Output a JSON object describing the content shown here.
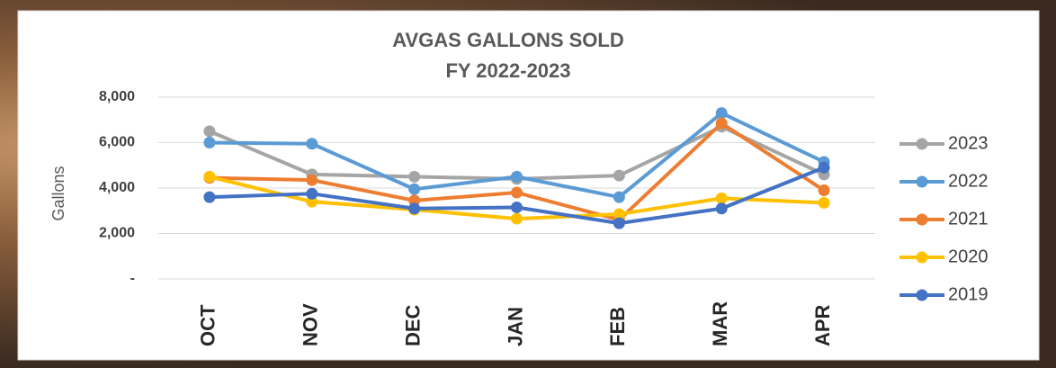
{
  "chart_data": {
    "type": "line",
    "title": "AVGAS GALLONS SOLD",
    "subtitle": "FY 2022-2023",
    "y_label": "Gallons",
    "categories": [
      "OCT",
      "NOV",
      "DEC",
      "JAN",
      "FEB",
      "MAR",
      "APR"
    ],
    "series": [
      {
        "name": "2023",
        "color": "#a5a5a5",
        "values": [
          6500,
          4600,
          4500,
          4400,
          4550,
          6700,
          4600
        ]
      },
      {
        "name": "2022",
        "color": "#5b9bd5",
        "values": [
          6000,
          5950,
          3950,
          4500,
          3600,
          7300,
          5150
        ]
      },
      {
        "name": "2021",
        "color": "#ed7d31",
        "values": [
          4450,
          4350,
          3450,
          3800,
          2600,
          6850,
          3900
        ]
      },
      {
        "name": "2020",
        "color": "#ffc000",
        "values": [
          4500,
          3400,
          3050,
          2650,
          2850,
          3550,
          3350
        ]
      },
      {
        "name": "2019",
        "color": "#4472c4",
        "values": [
          3600,
          3750,
          3100,
          3150,
          2450,
          3100,
          4900
        ]
      }
    ],
    "ylim": [
      0,
      8000
    ],
    "yticks": [
      {
        "value": 0,
        "label": "-"
      },
      {
        "value": 2000,
        "label": "2,000"
      },
      {
        "value": 4000,
        "label": "4,000"
      },
      {
        "value": 6000,
        "label": "6,000"
      },
      {
        "value": 8000,
        "label": "8,000"
      }
    ],
    "grid": true,
    "legend": "right"
  }
}
